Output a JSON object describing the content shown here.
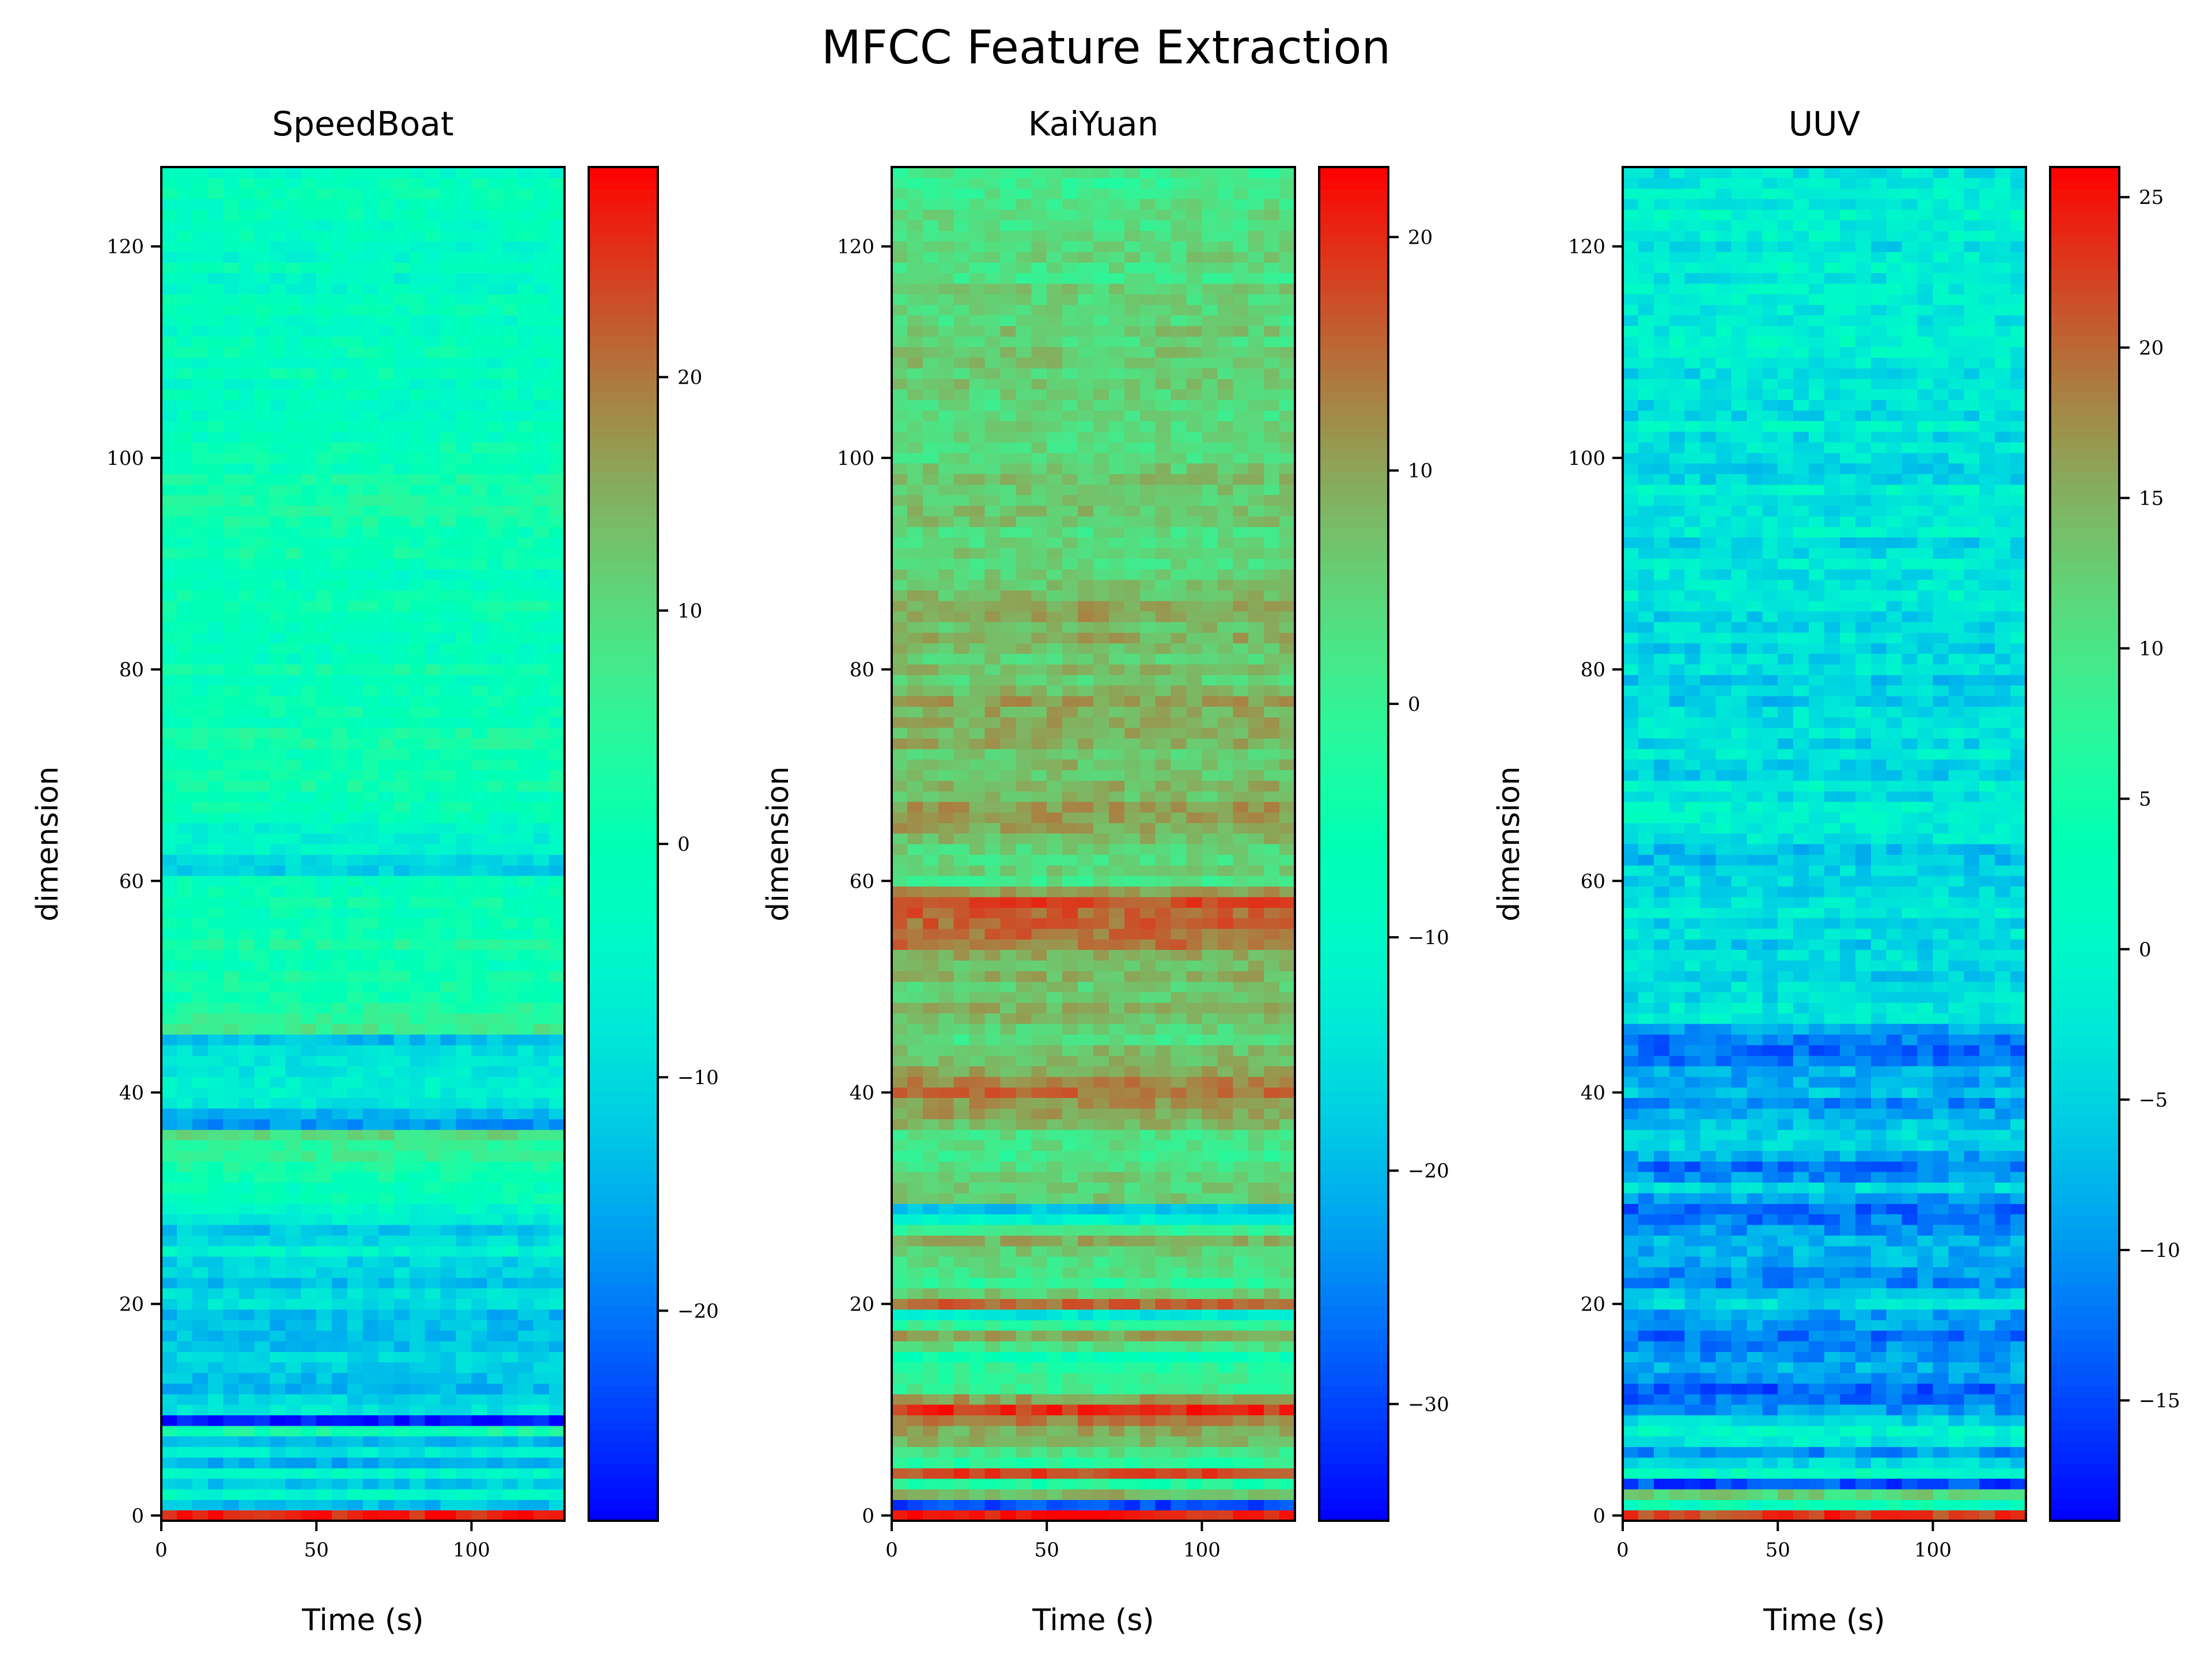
{
  "figure": {
    "title": "MFCC Feature Extraction"
  },
  "chart_data": [
    {
      "type": "heatmap",
      "title": "SpeedBoat",
      "xlabel": "Time (s)",
      "ylabel": "dimension",
      "xlim": [
        0,
        130
      ],
      "ylim": [
        0,
        127
      ],
      "xticks": [
        0,
        50,
        100
      ],
      "yticks": [
        0,
        20,
        40,
        60,
        80,
        100,
        120
      ],
      "colorbar": {
        "min": -29,
        "max": 29,
        "ticks": [
          -20,
          -10,
          0,
          10,
          20
        ]
      },
      "row_means": {
        "x": [
          0,
          1,
          2,
          3,
          4,
          5,
          6,
          7,
          8,
          9,
          10,
          12,
          13,
          15,
          17,
          19,
          20,
          23,
          25,
          27,
          30,
          36,
          37,
          40,
          44,
          45,
          46,
          50,
          55,
          60,
          61,
          63,
          65,
          70,
          80,
          90,
          96,
          100,
          110,
          120,
          127
        ],
        "values": [
          26,
          -12,
          -3,
          -14,
          -5,
          -16,
          -8,
          -14,
          0,
          -26,
          -10,
          -12,
          -15,
          -12,
          -14,
          -13,
          -9,
          -12,
          -7,
          -12,
          -2,
          8,
          -16,
          -5,
          -8,
          -14,
          6,
          1,
          2,
          -1,
          -10,
          -6,
          -4,
          2,
          0,
          -1,
          4,
          -2,
          -2,
          -3,
          -2
        ]
      },
      "colormap": "rainbow"
    },
    {
      "type": "heatmap",
      "title": "KaiYuan",
      "xlabel": "Time (s)",
      "ylabel": "dimension",
      "xlim": [
        0,
        130
      ],
      "ylim": [
        0,
        127
      ],
      "xticks": [
        0,
        50,
        100
      ],
      "yticks": [
        0,
        20,
        40,
        60,
        80,
        100,
        120
      ],
      "colorbar": {
        "min": -35,
        "max": 23,
        "ticks": [
          -30,
          -20,
          -10,
          0,
          10,
          20
        ]
      },
      "row_means": {
        "x": [
          0,
          1,
          2,
          3,
          4,
          5,
          8,
          10,
          12,
          15,
          17,
          19,
          20,
          22,
          26,
          29,
          30,
          35,
          40,
          45,
          48,
          50,
          54,
          58,
          60,
          66,
          70,
          76,
          80,
          86,
          90,
          100,
          110,
          120,
          127
        ],
        "values": [
          20,
          -30,
          10,
          -3,
          17,
          -2,
          11,
          18,
          0,
          -5,
          10,
          -14,
          16,
          -1,
          7,
          -18,
          5,
          2,
          13,
          5,
          10,
          5,
          12,
          17,
          3,
          10,
          6,
          11,
          6,
          9,
          5,
          5,
          5,
          3,
          2
        ]
      },
      "colormap": "rainbow"
    },
    {
      "type": "heatmap",
      "title": "UUV",
      "xlabel": "Time (s)",
      "ylabel": "dimension",
      "xlim": [
        0,
        130
      ],
      "ylim": [
        0,
        127
      ],
      "xticks": [
        0,
        50,
        100
      ],
      "yticks": [
        0,
        20,
        40,
        60,
        80,
        100,
        120
      ],
      "colorbar": {
        "min": -19,
        "max": 26,
        "ticks": [
          -15,
          -10,
          -5,
          0,
          5,
          10,
          15,
          20,
          25
        ]
      },
      "row_means": {
        "x": [
          0,
          1,
          2,
          3,
          4,
          6,
          8,
          10,
          12,
          14,
          17,
          19,
          20,
          23,
          25,
          29,
          31,
          33,
          35,
          39,
          40,
          45,
          47,
          50,
          55,
          60,
          63,
          65,
          71,
          80,
          90,
          100,
          110,
          120,
          127
        ],
        "values": [
          21,
          4,
          11,
          -13,
          0,
          -9,
          1,
          -11,
          -12,
          -10,
          -11,
          -11,
          -3,
          -12,
          -7,
          -11,
          -6,
          -13,
          -3,
          -10,
          -7,
          -12,
          -4,
          -4,
          -4,
          -3,
          -6,
          -1,
          -4,
          -4,
          -3,
          -3,
          -2,
          -2,
          -2
        ]
      },
      "colormap": "rainbow"
    }
  ]
}
